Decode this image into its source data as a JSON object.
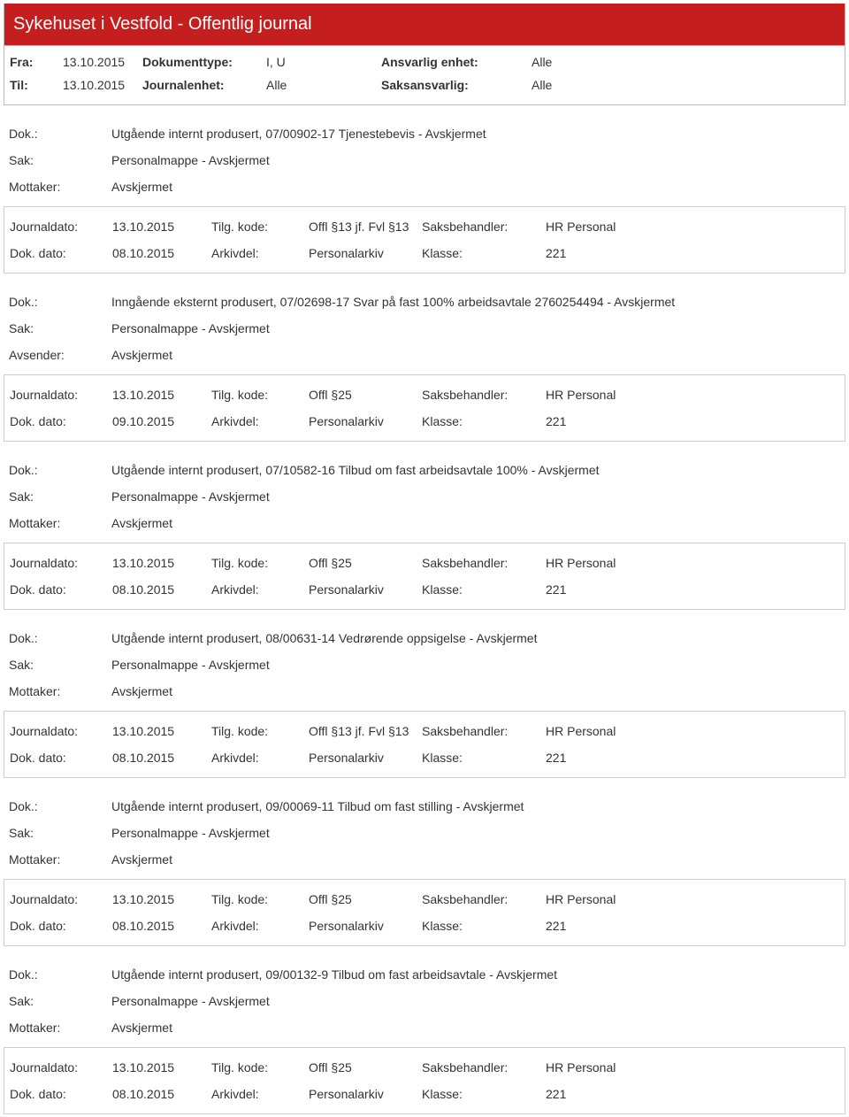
{
  "header": {
    "title": "Sykehuset i Vestfold - Offentlig journal"
  },
  "meta": {
    "fra_label": "Fra:",
    "fra_value": "13.10.2015",
    "til_label": "Til:",
    "til_value": "13.10.2015",
    "dokumenttype_label": "Dokumenttype:",
    "dokumenttype_value": "I, U",
    "journalenhet_label": "Journalenhet:",
    "journalenhet_value": "Alle",
    "ansvarlig_label": "Ansvarlig enhet:",
    "ansvarlig_value": "Alle",
    "saksansvarlig_label": "Saksansvarlig:",
    "saksansvarlig_value": "Alle"
  },
  "labels": {
    "dok": "Dok.:",
    "sak": "Sak:",
    "mottaker": "Mottaker:",
    "avsender": "Avsender:",
    "journaldato": "Journaldato:",
    "dokdato": "Dok. dato:",
    "tilgkode": "Tilg. kode:",
    "arkivdel": "Arkivdel:",
    "saksbehandler": "Saksbehandler:",
    "klasse": "Klasse:"
  },
  "entries": [
    {
      "dok": "Utgående internt produsert, 07/00902-17 Tjenestebevis - Avskjermet",
      "sak": "Personalmappe - Avskjermet",
      "party_label": "Mottaker:",
      "party_value": "Avskjermet",
      "journaldato": "13.10.2015",
      "tilgkode": "Offl §13 jf. Fvl §13",
      "saksbehandler": "HR Personal",
      "dokdato": "08.10.2015",
      "arkivdel": "Personalarkiv",
      "klasse": "221"
    },
    {
      "dok": "Inngående eksternt produsert, 07/02698-17 Svar på fast 100% arbeidsavtale 2760254494 - Avskjermet",
      "sak": "Personalmappe - Avskjermet",
      "party_label": "Avsender:",
      "party_value": "Avskjermet",
      "journaldato": "13.10.2015",
      "tilgkode": "Offl §25",
      "saksbehandler": "HR Personal",
      "dokdato": "09.10.2015",
      "arkivdel": "Personalarkiv",
      "klasse": "221"
    },
    {
      "dok": "Utgående internt produsert, 07/10582-16 Tilbud om fast arbeidsavtale 100% - Avskjermet",
      "sak": "Personalmappe - Avskjermet",
      "party_label": "Mottaker:",
      "party_value": "Avskjermet",
      "journaldato": "13.10.2015",
      "tilgkode": "Offl §25",
      "saksbehandler": "HR Personal",
      "dokdato": "08.10.2015",
      "arkivdel": "Personalarkiv",
      "klasse": "221"
    },
    {
      "dok": "Utgående internt produsert, 08/00631-14 Vedrørende oppsigelse - Avskjermet",
      "sak": "Personalmappe - Avskjermet",
      "party_label": "Mottaker:",
      "party_value": "Avskjermet",
      "journaldato": "13.10.2015",
      "tilgkode": "Offl §13 jf. Fvl §13",
      "saksbehandler": "HR Personal",
      "dokdato": "08.10.2015",
      "arkivdel": "Personalarkiv",
      "klasse": "221"
    },
    {
      "dok": "Utgående internt produsert, 09/00069-11 Tilbud om fast stilling - Avskjermet",
      "sak": "Personalmappe - Avskjermet",
      "party_label": "Mottaker:",
      "party_value": "Avskjermet",
      "journaldato": "13.10.2015",
      "tilgkode": "Offl §25",
      "saksbehandler": "HR Personal",
      "dokdato": "08.10.2015",
      "arkivdel": "Personalarkiv",
      "klasse": "221"
    },
    {
      "dok": "Utgående internt produsert, 09/00132-9 Tilbud om fast arbeidsavtale - Avskjermet",
      "sak": "Personalmappe - Avskjermet",
      "party_label": "Mottaker:",
      "party_value": "Avskjermet",
      "journaldato": "13.10.2015",
      "tilgkode": "Offl §25",
      "saksbehandler": "HR Personal",
      "dokdato": "08.10.2015",
      "arkivdel": "Personalarkiv",
      "klasse": "221"
    }
  ],
  "style": {
    "header_bg": "#c41e1e",
    "header_fg": "#ffffff",
    "border_color": "#cccccc",
    "text_color": "#333333",
    "font_size_body": 14,
    "font_size_header": 20
  }
}
